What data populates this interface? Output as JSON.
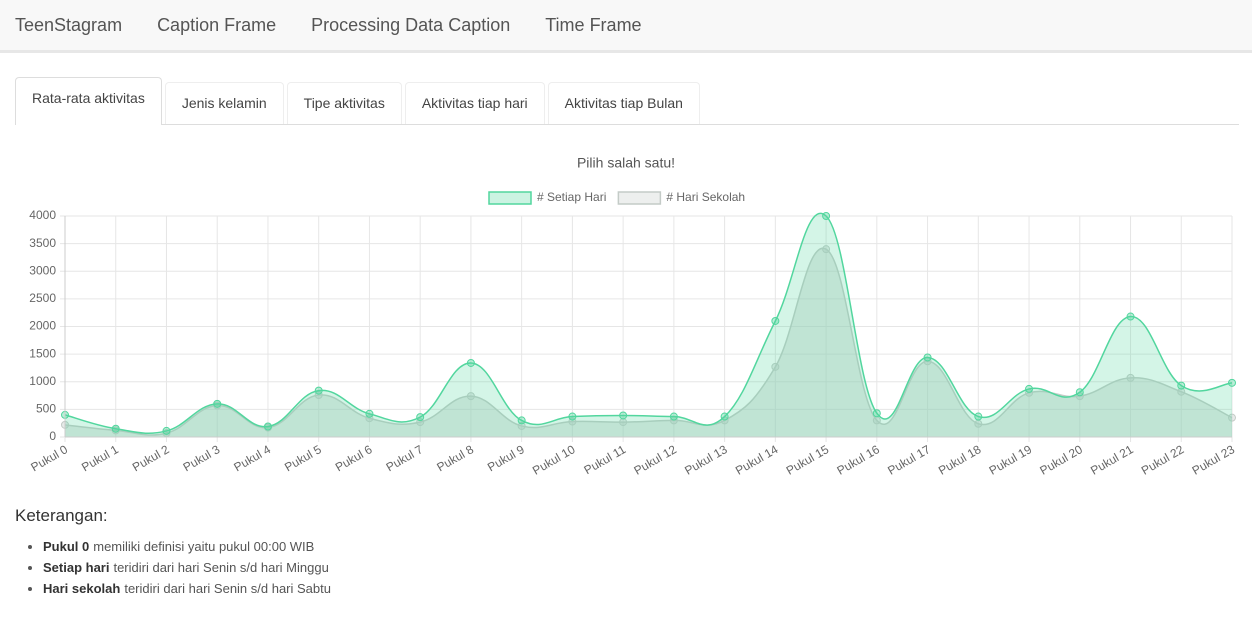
{
  "nav": {
    "brand": "TeenStagram",
    "items": [
      "Caption Frame",
      "Processing Data Caption",
      "Time Frame"
    ]
  },
  "tabs": {
    "items": [
      "Rata-rata aktivitas",
      "Jenis kelamin",
      "Tipe aktivitas",
      "Aktivitas tiap hari",
      "Aktivitas tiap Bulan"
    ],
    "active": 0
  },
  "chart_data": {
    "type": "line",
    "title": "Pilih salah satu!",
    "legend": "top",
    "grid": true,
    "fill": true,
    "categories": [
      "Pukul 0",
      "Pukul 1",
      "Pukul 2",
      "Pukul 3",
      "Pukul 4",
      "Pukul 5",
      "Pukul 6",
      "Pukul 7",
      "Pukul 8",
      "Pukul 9",
      "Pukul 10",
      "Pukul 11",
      "Pukul 12",
      "Pukul 13",
      "Pukul 14",
      "Pukul 15",
      "Pukul 16",
      "Pukul 17",
      "Pukul 18",
      "Pukul 19",
      "Pukul 20",
      "Pukul 21",
      "Pukul 22",
      "Pukul 23"
    ],
    "series": [
      {
        "name": "# Setiap Hari",
        "color": "#52d69e",
        "values": [
          400,
          150,
          110,
          600,
          190,
          840,
          420,
          360,
          1340,
          300,
          370,
          390,
          370,
          370,
          2100,
          4000,
          430,
          1440,
          370,
          870,
          810,
          2180,
          930,
          980
        ]
      },
      {
        "name": "# Hari Sekolah",
        "color": "#c4cbc7",
        "values": [
          220,
          120,
          70,
          570,
          170,
          760,
          340,
          270,
          740,
          200,
          280,
          270,
          300,
          300,
          1270,
          3400,
          300,
          1370,
          240,
          800,
          740,
          1070,
          820,
          350
        ]
      }
    ],
    "ylim": [
      0,
      4000
    ],
    "yticks": [
      0,
      500,
      1000,
      1500,
      2000,
      2500,
      3000,
      3500,
      4000
    ]
  },
  "notes": {
    "title": "Keterangan:",
    "items": [
      {
        "term": "Pukul 0",
        "text": "memiliki definisi yaitu pukul 00:00 WIB"
      },
      {
        "term": "Setiap hari",
        "text": "teridiri dari hari Senin s/d hari Minggu"
      },
      {
        "term": "Hari sekolah",
        "text": "teridiri dari hari Senin s/d hari Sabtu"
      }
    ]
  }
}
